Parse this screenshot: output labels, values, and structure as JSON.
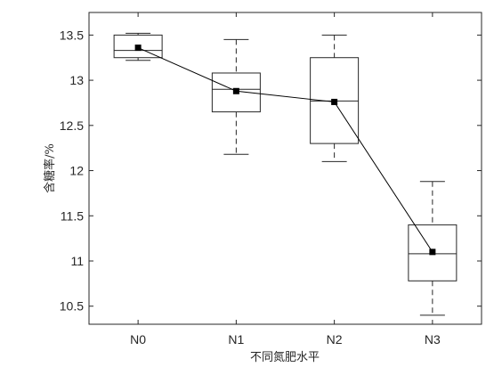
{
  "chart_data": {
    "type": "box",
    "title": "",
    "xlabel": "不同氮肥水平",
    "ylabel": "含糖率/%",
    "categories": [
      "N0",
      "N1",
      "N2",
      "N3"
    ],
    "ylim": [
      10.3,
      13.75
    ],
    "y_ticks": [
      10.5,
      11,
      11.5,
      12,
      12.5,
      13,
      13.5
    ],
    "y_tick_labels": [
      "10.5",
      "11",
      "11.5",
      "12",
      "12.5",
      "13",
      "13.5"
    ],
    "grid": false,
    "boxes": [
      {
        "category": "N0",
        "min": 13.22,
        "q1": 13.25,
        "median": 13.33,
        "q3": 13.5,
        "max": 13.52
      },
      {
        "category": "N1",
        "min": 12.18,
        "q1": 12.65,
        "median": 12.9,
        "q3": 13.08,
        "max": 13.45
      },
      {
        "category": "N2",
        "min": 12.1,
        "q1": 12.3,
        "median": 12.77,
        "q3": 13.25,
        "max": 13.5
      },
      {
        "category": "N3",
        "min": 10.4,
        "q1": 10.78,
        "median": 11.08,
        "q3": 11.4,
        "max": 11.88
      }
    ],
    "mean_series": {
      "values": [
        13.36,
        12.88,
        12.76,
        11.1
      ],
      "marker": "square",
      "color": "#000000"
    },
    "colors": {
      "box": "#262626",
      "axis": "#262626"
    }
  }
}
